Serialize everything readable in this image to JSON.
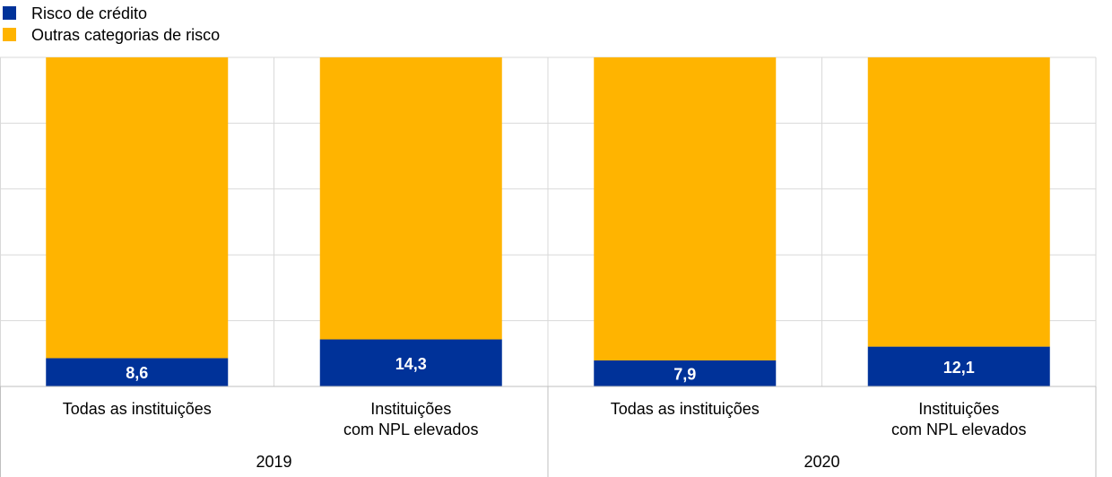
{
  "chart_data": {
    "type": "bar",
    "stacked": true,
    "percent_stacked": true,
    "groups": [
      {
        "label": "2019",
        "categories": [
          [
            "Todas as instituições"
          ],
          [
            "Instituições",
            "com NPL elevados"
          ]
        ]
      },
      {
        "label": "2020",
        "categories": [
          [
            "Todas as instituições"
          ],
          [
            "Instituições",
            "com NPL elevados"
          ]
        ]
      }
    ],
    "series": [
      {
        "name": "Risco de crédito",
        "color": "#003299",
        "values": [
          8.6,
          14.3,
          7.9,
          12.1
        ],
        "data_labels": [
          "8,6",
          "14,3",
          "7,9",
          "12,1"
        ]
      },
      {
        "name": "Outras categorias de risco",
        "color": "#FFB400",
        "values": [
          91.4,
          85.7,
          92.1,
          87.9
        ]
      }
    ],
    "ylim": [
      0,
      100
    ],
    "grid": true,
    "legend_position": "top-left"
  }
}
